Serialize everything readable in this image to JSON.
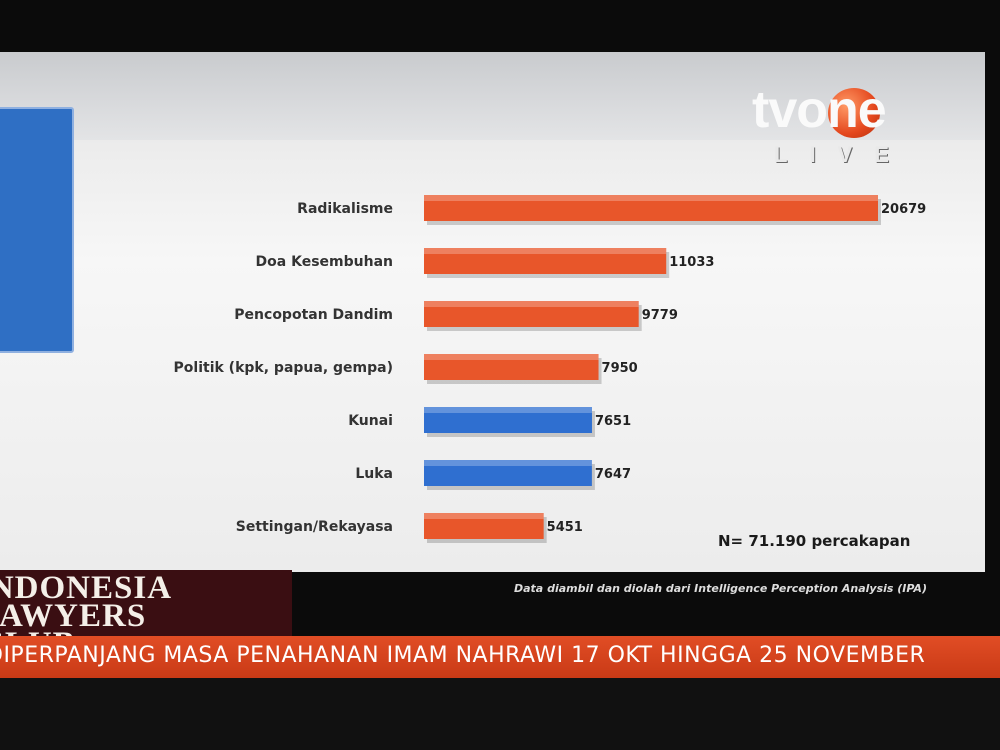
{
  "channel": {
    "logo_text": "tvone",
    "live_text": "LIVE"
  },
  "chart_data": {
    "type": "bar",
    "orientation": "horizontal",
    "categories": [
      "Radikalisme",
      "Doa Kesembuhan",
      "Pencopotan Dandim",
      "Politik (kpk, papua, gempa)",
      "Kunai",
      "Luka",
      "Settingan/Rekayasa"
    ],
    "values": [
      20679,
      11033,
      9779,
      7950,
      7651,
      7647,
      5451
    ],
    "value_labels": [
      "20679",
      "11033",
      "9779",
      "7950",
      "7651",
      "7647",
      "5451"
    ],
    "bar_colors": [
      "#e8562a",
      "#e8562a",
      "#e8562a",
      "#e8562a",
      "#2f6fd0",
      "#2f6fd0",
      "#e8562a"
    ],
    "grid": false
  },
  "footnote": {
    "n_text": "N= 71.190 percakapan",
    "source_text": "Data diambil dan diolah dari Intelligence Perception Analysis (IPA)"
  },
  "program": {
    "line1": "INDONESIA",
    "line2": "LAWYERS",
    "line3": "CLUB"
  },
  "ticker": {
    "text": "DIPERPANJANG MASA PENAHANAN IMAM NAHRAWI 17 OKT HINGGA 25 NOVEMBER"
  }
}
